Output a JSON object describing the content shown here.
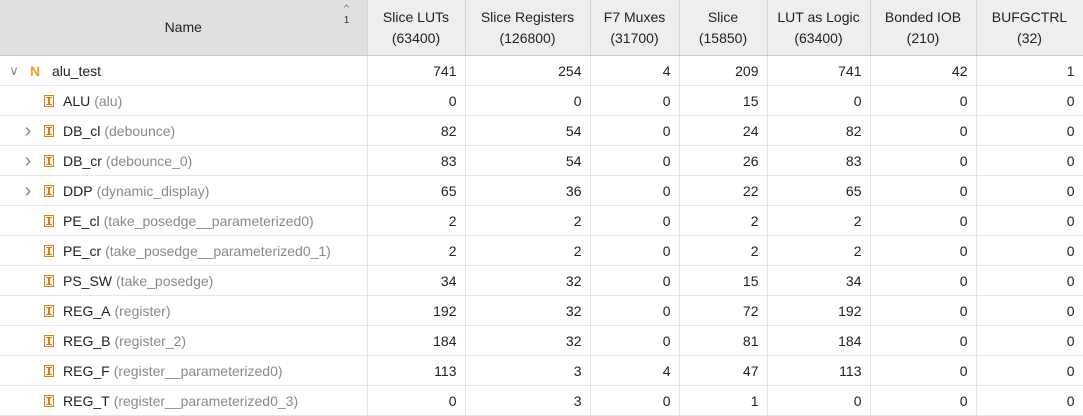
{
  "columns": [
    {
      "title": "Slice LUTs",
      "sub": "(63400)"
    },
    {
      "title": "Slice Registers",
      "sub": "(126800)"
    },
    {
      "title": "F7 Muxes",
      "sub": "(31700)"
    },
    {
      "title": "Slice",
      "sub": "(15850)"
    },
    {
      "title": "LUT as Logic",
      "sub": "(63400)"
    },
    {
      "title": "Bonded IOB",
      "sub": "(210)"
    },
    {
      "title": "BUFGCTRL",
      "sub": "(32)"
    }
  ],
  "name_header": "Name",
  "sort_index": "1",
  "rows": [
    {
      "name": "alu_test",
      "module": "",
      "icon": "top-module-icon",
      "expandable": true,
      "expanded": true,
      "depth": 0,
      "values": [
        "741",
        "254",
        "4",
        "209",
        "741",
        "42",
        "1"
      ]
    },
    {
      "name": "ALU",
      "module": "(alu)",
      "icon": "instance-icon",
      "expandable": false,
      "depth": 1,
      "values": [
        "0",
        "0",
        "0",
        "15",
        "0",
        "0",
        "0"
      ]
    },
    {
      "name": "DB_cl",
      "module": "(debounce)",
      "icon": "instance-icon",
      "expandable": true,
      "depth": 1,
      "values": [
        "82",
        "54",
        "0",
        "24",
        "82",
        "0",
        "0"
      ]
    },
    {
      "name": "DB_cr",
      "module": "(debounce_0)",
      "icon": "instance-icon",
      "expandable": true,
      "depth": 1,
      "values": [
        "83",
        "54",
        "0",
        "26",
        "83",
        "0",
        "0"
      ]
    },
    {
      "name": "DDP",
      "module": "(dynamic_display)",
      "icon": "instance-icon",
      "expandable": true,
      "depth": 1,
      "values": [
        "65",
        "36",
        "0",
        "22",
        "65",
        "0",
        "0"
      ]
    },
    {
      "name": "PE_cl",
      "module": "(take_posedge__parameterized0)",
      "icon": "instance-icon",
      "expandable": false,
      "depth": 1,
      "values": [
        "2",
        "2",
        "0",
        "2",
        "2",
        "0",
        "0"
      ]
    },
    {
      "name": "PE_cr",
      "module": "(take_posedge__parameterized0_1)",
      "icon": "instance-icon",
      "expandable": false,
      "depth": 1,
      "values": [
        "2",
        "2",
        "0",
        "2",
        "2",
        "0",
        "0"
      ]
    },
    {
      "name": "PS_SW",
      "module": "(take_posedge)",
      "icon": "instance-icon",
      "expandable": false,
      "depth": 1,
      "values": [
        "34",
        "32",
        "0",
        "15",
        "34",
        "0",
        "0"
      ]
    },
    {
      "name": "REG_A",
      "module": "(register)",
      "icon": "instance-icon",
      "expandable": false,
      "depth": 1,
      "values": [
        "192",
        "32",
        "0",
        "72",
        "192",
        "0",
        "0"
      ]
    },
    {
      "name": "REG_B",
      "module": "(register_2)",
      "icon": "instance-icon",
      "expandable": false,
      "depth": 1,
      "values": [
        "184",
        "32",
        "0",
        "81",
        "184",
        "0",
        "0"
      ]
    },
    {
      "name": "REG_F",
      "module": "(register__parameterized0)",
      "icon": "instance-icon",
      "expandable": false,
      "depth": 1,
      "values": [
        "113",
        "3",
        "4",
        "47",
        "113",
        "0",
        "0"
      ]
    },
    {
      "name": "REG_T",
      "module": "(register__parameterized0_3)",
      "icon": "instance-icon",
      "expandable": false,
      "depth": 1,
      "values": [
        "0",
        "3",
        "0",
        "1",
        "0",
        "0",
        "0"
      ]
    }
  ]
}
